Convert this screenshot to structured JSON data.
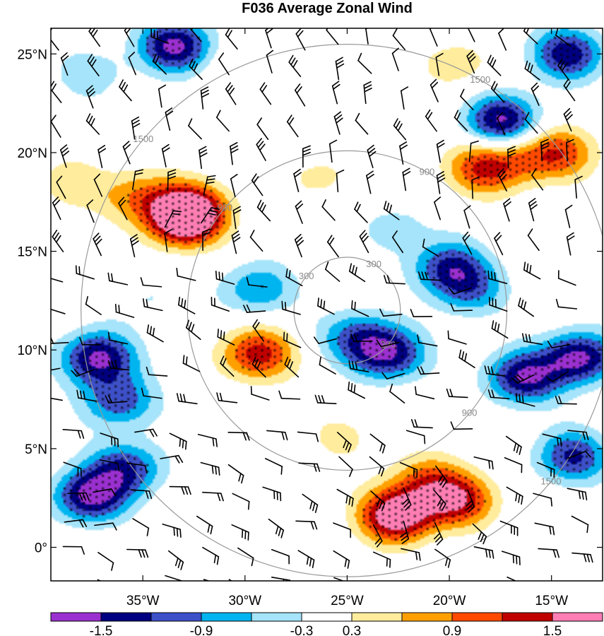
{
  "chart_data": {
    "type": "heatmap",
    "title": "F036 Average Zonal Wind",
    "projection": "lat-lon map with filled contours, stippling, wind barbs and range rings",
    "x_axis": {
      "range": [
        -39.5,
        -12.5
      ],
      "ticks": [
        -35,
        -30,
        -25,
        -20,
        -15
      ],
      "tick_labels": [
        "35°W",
        "30°W",
        "25°W",
        "20°W",
        "15°W"
      ]
    },
    "y_axis": {
      "range": [
        -1.7,
        26.3
      ],
      "ticks": [
        0,
        5,
        10,
        15,
        20,
        25
      ],
      "tick_labels": [
        "0°",
        "5°N",
        "10°N",
        "15°N",
        "20°N",
        "25°N"
      ]
    },
    "colorbar": {
      "orientation": "horizontal",
      "levels": [
        -1.5,
        -1.2,
        -0.9,
        -0.6,
        -0.3,
        0.3,
        0.6,
        0.9,
        1.2,
        1.5
      ],
      "labels": [
        "-1.5",
        "-0.9",
        "-0.3",
        "0.3",
        "0.9",
        "1.5"
      ],
      "colors": [
        "#9b30d0",
        "#000080",
        "#3d50c8",
        "#00b4f0",
        "#a5e4fa",
        "#ffffff",
        "#ffec9c",
        "#ffa000",
        "#ff4a00",
        "#c00000",
        "#ff7eb4"
      ]
    },
    "range_rings": {
      "center": [
        -25,
        12
      ],
      "radii_km": [
        300,
        900,
        1500
      ],
      "labels": [
        "300",
        "900",
        "1500"
      ],
      "color": "#999999"
    },
    "fields": [
      {
        "lon": -33,
        "lat": 16.6,
        "value": 1.8
      },
      {
        "lon": -32.6,
        "lat": 17.2,
        "value": 1.0
      },
      {
        "lon": -35.2,
        "lat": 17.8,
        "value": 0.8
      },
      {
        "lon": -22.6,
        "lat": 1.6,
        "value": 1.9
      },
      {
        "lon": -19.6,
        "lat": 2.4,
        "value": 1.4
      },
      {
        "lon": -21.2,
        "lat": 3.4,
        "value": 0.8
      },
      {
        "lon": -18.4,
        "lat": 19.2,
        "value": 1.15
      },
      {
        "lon": -14.6,
        "lat": 20.0,
        "value": 1.05
      },
      {
        "lon": -16.6,
        "lat": 19.7,
        "value": 0.6
      },
      {
        "lon": -29.4,
        "lat": 9.8,
        "value": 1.35
      },
      {
        "lon": -26.2,
        "lat": 18.8,
        "value": 0.4
      },
      {
        "lon": -19.6,
        "lat": 24.5,
        "value": 0.5
      },
      {
        "lon": -30.0,
        "lat": 24.2,
        "value": 0.3
      },
      {
        "lon": -25.2,
        "lat": 5.6,
        "value": 0.38
      },
      {
        "lon": -38.6,
        "lat": 18.4,
        "value": 0.5
      },
      {
        "lon": -23.0,
        "lat": 9.8,
        "value": -1.45
      },
      {
        "lon": -24.6,
        "lat": 10.7,
        "value": -0.9
      },
      {
        "lon": -37.2,
        "lat": 9.6,
        "value": -1.6
      },
      {
        "lon": -36.2,
        "lat": 7.4,
        "value": -1.1
      },
      {
        "lon": -37.6,
        "lat": 2.6,
        "value": -1.6
      },
      {
        "lon": -35.8,
        "lat": 4.0,
        "value": -1.2
      },
      {
        "lon": -16.4,
        "lat": 8.6,
        "value": -1.5
      },
      {
        "lon": -13.6,
        "lat": 9.6,
        "value": -1.6
      },
      {
        "lon": -20.0,
        "lat": 14.2,
        "value": -1.2
      },
      {
        "lon": -19.0,
        "lat": 13.0,
        "value": -0.8
      },
      {
        "lon": -33.4,
        "lat": 25.4,
        "value": -1.6
      },
      {
        "lon": -17.4,
        "lat": 21.6,
        "value": -1.6
      },
      {
        "lon": -14.2,
        "lat": 25.0,
        "value": -1.4
      },
      {
        "lon": -29.4,
        "lat": 13.1,
        "value": -0.9
      },
      {
        "lon": -14.0,
        "lat": 4.6,
        "value": -1.25
      },
      {
        "lon": -22.6,
        "lat": 16.2,
        "value": -0.45
      },
      {
        "lon": -34.6,
        "lat": 12.6,
        "value": -0.35
      },
      {
        "lon": -37.6,
        "lat": 24.0,
        "value": -0.5
      }
    ]
  }
}
